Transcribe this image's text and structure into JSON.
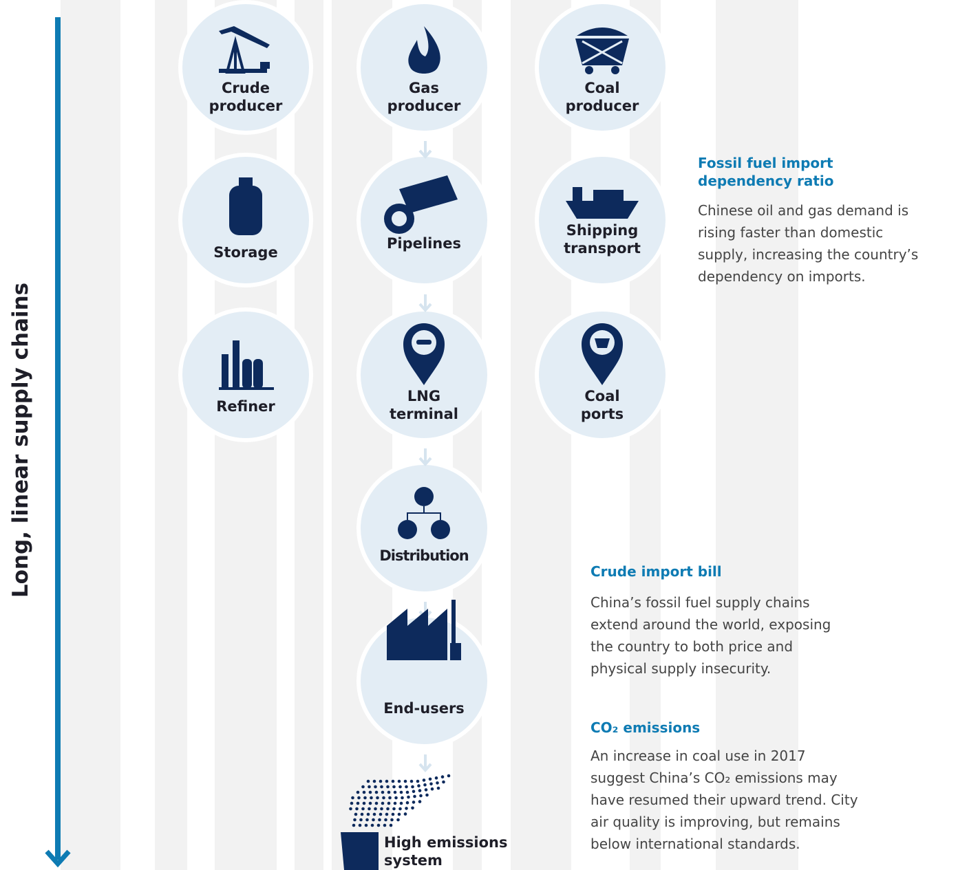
{
  "side_label": "Long, linear supply chains",
  "nodes": [
    {
      "label": [
        "Crude",
        "producer"
      ]
    },
    {
      "label": [
        "Gas",
        "producer"
      ]
    },
    {
      "label": [
        "Coal",
        "producer"
      ]
    },
    {
      "label": [
        "Storage"
      ]
    },
    {
      "label": [
        "Pipelines"
      ]
    },
    {
      "label": [
        "Shipping",
        "transport"
      ]
    },
    {
      "label": [
        "Refiner"
      ]
    },
    {
      "label": [
        "LNG",
        "terminal"
      ]
    },
    {
      "label": [
        "Coal",
        "ports"
      ]
    },
    {
      "label": [
        "Distribution"
      ]
    },
    {
      "label": [
        "End-users"
      ]
    },
    {
      "label": [
        "High emissions",
        "system"
      ]
    }
  ],
  "notes": [
    {
      "title": [
        "Fossil fuel import",
        "dependency ratio"
      ],
      "body": [
        "Chinese oil and gas demand is",
        "rising faster than domestic",
        "supply, increasing the country’s",
        "dependency on imports."
      ]
    },
    {
      "title": [
        "Crude import bill"
      ],
      "body": [
        "China’s fossil fuel supply chains",
        "extend around the world, exposing",
        "the country to both price and",
        "physical supply insecurity."
      ]
    },
    {
      "title": [
        "CO₂ emissions"
      ],
      "body": [
        "An increase in coal use in 2017",
        "suggest China’s CO₂ emissions may",
        "have resumed their upward trend. City",
        "air quality is improving, but remains",
        "below international standards."
      ]
    }
  ]
}
